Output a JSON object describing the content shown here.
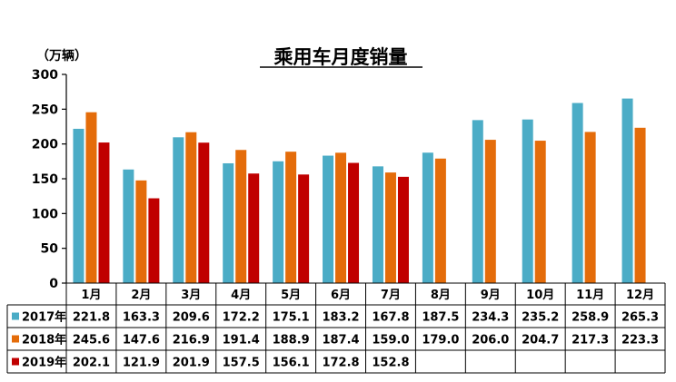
{
  "chart_data": {
    "type": "bar",
    "title": "乘用车月度销量",
    "unit_label": "（万辆）",
    "ylim": [
      0,
      300
    ],
    "y_ticks": [
      "0",
      "50",
      "100",
      "150",
      "200",
      "250",
      "300"
    ],
    "categories": [
      "1月",
      "2月",
      "3月",
      "4月",
      "5月",
      "6月",
      "7月",
      "8月",
      "9月",
      "10月",
      "11月",
      "12月"
    ],
    "series": [
      {
        "name": "2017年",
        "color": "#4bacc6",
        "values": [
          221.8,
          163.3,
          209.6,
          172.2,
          175.1,
          183.2,
          167.8,
          187.5,
          234.3,
          235.2,
          258.9,
          265.3
        ],
        "labels": [
          "221.8",
          "163.3",
          "209.6",
          "172.2",
          "175.1",
          "183.2",
          "167.8",
          "187.5",
          "234.3",
          "235.2",
          "258.9",
          "265.3"
        ]
      },
      {
        "name": "2018年",
        "color": "#e46c0a",
        "values": [
          245.6,
          147.6,
          216.9,
          191.4,
          188.9,
          187.4,
          159.0,
          179.0,
          206.0,
          204.7,
          217.3,
          223.3
        ],
        "labels": [
          "245.6",
          "147.6",
          "216.9",
          "191.4",
          "188.9",
          "187.4",
          "159.0",
          "179.0",
          "206.0",
          "204.7",
          "217.3",
          "223.3"
        ]
      },
      {
        "name": "2019年",
        "color": "#c00000",
        "values": [
          202.1,
          121.9,
          201.9,
          157.5,
          156.1,
          172.8,
          152.8,
          null,
          null,
          null,
          null,
          null
        ],
        "labels": [
          "202.1",
          "121.9",
          "201.9",
          "157.5",
          "156.1",
          "172.8",
          "152.8",
          "",
          "",
          "",
          "",
          ""
        ]
      }
    ],
    "grid": false,
    "legend": "data table below chart"
  }
}
